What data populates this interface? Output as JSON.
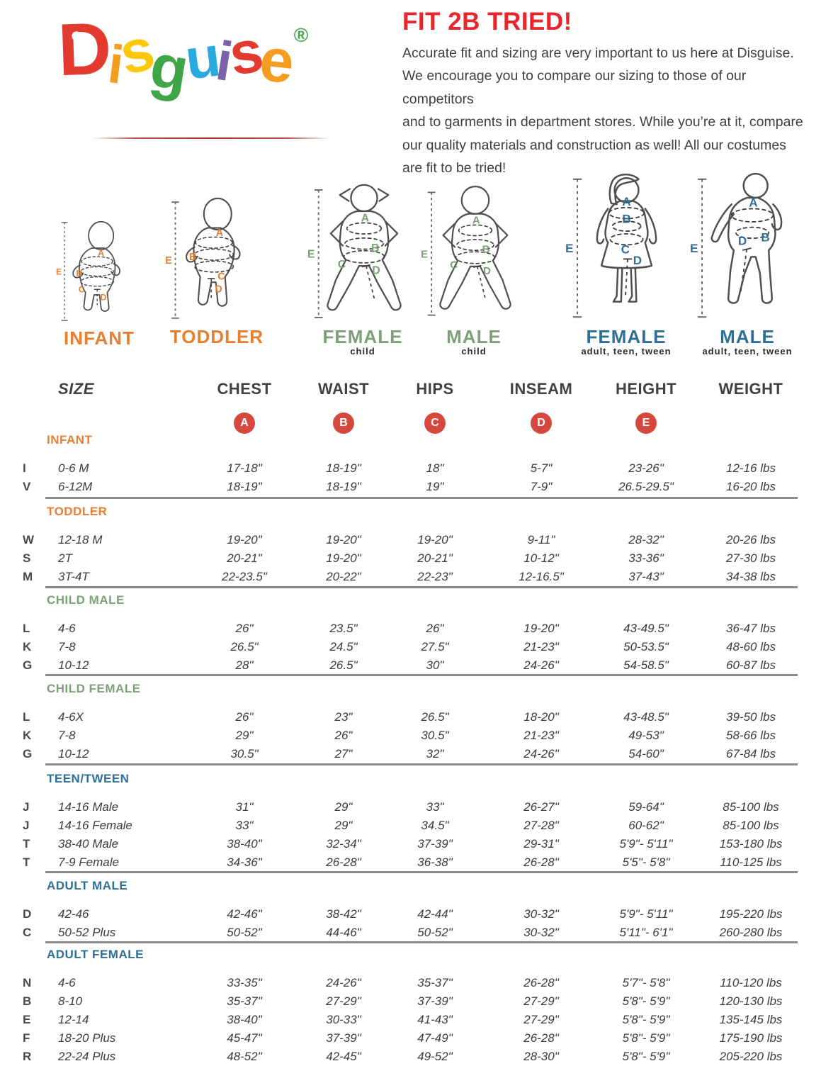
{
  "logo": {
    "letters": [
      {
        "ch": "D",
        "color": "#e23a2e"
      },
      {
        "ch": "i",
        "color": "#f59d20"
      },
      {
        "ch": "s",
        "color": "#fdc70c"
      },
      {
        "ch": "g",
        "color": "#3fa648"
      },
      {
        "ch": "u",
        "color": "#2ba9e1"
      },
      {
        "ch": "i",
        "color": "#7c63a9"
      },
      {
        "ch": "s",
        "color": "#e23a2e"
      },
      {
        "ch": "e",
        "color": "#f59d20"
      }
    ],
    "registered": "®",
    "registered_color": "#3fa648"
  },
  "header": {
    "title": "FIT 2B TRIED!",
    "title_color": "#e8262d",
    "lines": [
      "Accurate fit and sizing are very important to us here at Disguise.",
      "We encourage you to compare our sizing to those of our competitors",
      "and to garments in department stores. While you’re at it, compare",
      "our quality materials and construction as well! All our costumes",
      "are fit to be tried!"
    ]
  },
  "figures": [
    {
      "name": "INFANT",
      "sublabel": "",
      "color": "#e87e2e",
      "letters": [
        "A",
        "B",
        "C",
        "D",
        "E"
      ]
    },
    {
      "name": "TODDLER",
      "sublabel": "",
      "color": "#e87e2e",
      "letters": [
        "A",
        "B",
        "C",
        "D",
        "E"
      ]
    },
    {
      "name": "FEMALE",
      "sublabel": "child",
      "color": "#7da177",
      "letters": [
        "A",
        "B",
        "C",
        "D",
        "E"
      ]
    },
    {
      "name": "MALE",
      "sublabel": "child",
      "color": "#7da177",
      "letters": [
        "A",
        "B",
        "C",
        "D",
        "E"
      ]
    },
    {
      "name": "FEMALE",
      "sublabel": "adult, teen, tween",
      "color": "#2e6f96",
      "letters": [
        "A",
        "B",
        "C",
        "D",
        "E"
      ]
    },
    {
      "name": "MALE",
      "sublabel": "adult, teen, tween",
      "color": "#2e6f96",
      "letters": [
        "A",
        "B",
        "D",
        "E"
      ]
    }
  ],
  "table": {
    "headers": [
      "SIZE",
      "CHEST",
      "WAIST",
      "HIPS",
      "INSEAM",
      "HEIGHT",
      "WEIGHT"
    ],
    "badges": [
      "A",
      "B",
      "C",
      "D",
      "E"
    ],
    "badge_color": "#d5483d",
    "divider_color": "#8a8a8a",
    "sections": [
      {
        "title": "INFANT",
        "color": "#e87e2e",
        "rows": [
          {
            "letter": "I",
            "size": "0-6 M",
            "chest": "17-18\"",
            "waist": "18-19\"",
            "hips": "18\"",
            "inseam": "5-7\"",
            "height": "23-26\"",
            "weight": "12-16 lbs"
          },
          {
            "letter": "V",
            "size": "6-12M",
            "chest": "18-19\"",
            "waist": "18-19\"",
            "hips": "19\"",
            "inseam": "7-9\"",
            "height": "26.5-29.5\"",
            "weight": "16-20 lbs"
          }
        ]
      },
      {
        "title": "TODDLER",
        "color": "#e87e2e",
        "rows": [
          {
            "letter": "W",
            "size": "12-18 M",
            "chest": "19-20\"",
            "waist": "19-20\"",
            "hips": "19-20\"",
            "inseam": "9-11\"",
            "height": "28-32\"",
            "weight": "20-26 lbs"
          },
          {
            "letter": "S",
            "size": "2T",
            "chest": "20-21\"",
            "waist": "19-20\"",
            "hips": "20-21\"",
            "inseam": "10-12\"",
            "height": "33-36\"",
            "weight": "27-30 lbs"
          },
          {
            "letter": "M",
            "size": "3T-4T",
            "chest": "22-23.5\"",
            "waist": "20-22\"",
            "hips": "22-23\"",
            "inseam": "12-16.5\"",
            "height": "37-43\"",
            "weight": "34-38 lbs"
          }
        ]
      },
      {
        "title": "CHILD MALE",
        "color": "#7da177",
        "rows": [
          {
            "letter": "L",
            "size": "4-6",
            "chest": "26\"",
            "waist": "23.5\"",
            "hips": "26\"",
            "inseam": "19-20\"",
            "height": "43-49.5\"",
            "weight": "36-47 lbs"
          },
          {
            "letter": "K",
            "size": "7-8",
            "chest": "26.5\"",
            "waist": "24.5\"",
            "hips": "27.5\"",
            "inseam": "21-23\"",
            "height": "50-53.5\"",
            "weight": "48-60 lbs"
          },
          {
            "letter": "G",
            "size": "10-12",
            "chest": "28\"",
            "waist": "26.5\"",
            "hips": "30\"",
            "inseam": "24-26\"",
            "height": "54-58.5\"",
            "weight": "60-87 lbs"
          }
        ]
      },
      {
        "title": "CHILD FEMALE",
        "color": "#7da177",
        "rows": [
          {
            "letter": "L",
            "size": "4-6X",
            "chest": "26\"",
            "waist": "23\"",
            "hips": "26.5\"",
            "inseam": "18-20\"",
            "height": "43-48.5\"",
            "weight": "39-50 lbs"
          },
          {
            "letter": "K",
            "size": "7-8",
            "chest": "29\"",
            "waist": "26\"",
            "hips": "30.5\"",
            "inseam": "21-23\"",
            "height": "49-53\"",
            "weight": "58-66 lbs"
          },
          {
            "letter": "G",
            "size": "10-12",
            "chest": "30.5\"",
            "waist": "27\"",
            "hips": "32\"",
            "inseam": "24-26\"",
            "height": "54-60\"",
            "weight": "67-84 lbs"
          }
        ]
      },
      {
        "title": "TEEN/TWEEN",
        "color": "#2e6f96",
        "rows": [
          {
            "letter": "J",
            "size": "14-16 Male",
            "chest": "31\"",
            "waist": "29\"",
            "hips": "33\"",
            "inseam": "26-27\"",
            "height": "59-64\"",
            "weight": "85-100 lbs"
          },
          {
            "letter": "J",
            "size": "14-16 Female",
            "chest": "33\"",
            "waist": "29\"",
            "hips": "34.5\"",
            "inseam": "27-28\"",
            "height": "60-62\"",
            "weight": "85-100 lbs"
          },
          {
            "letter": "T",
            "size": "38-40 Male",
            "chest": "38-40\"",
            "waist": "32-34\"",
            "hips": "37-39\"",
            "inseam": "29-31\"",
            "height": "5'9\"- 5'11\"",
            "weight": "153-180 lbs"
          },
          {
            "letter": "T",
            "size": "7-9 Female",
            "chest": "34-36\"",
            "waist": "26-28\"",
            "hips": "36-38\"",
            "inseam": "26-28\"",
            "height": "5'5\"- 5'8\"",
            "weight": "110-125 lbs"
          }
        ]
      },
      {
        "title": "ADULT MALE",
        "color": "#2e6f96",
        "rows": [
          {
            "letter": "D",
            "size": "42-46",
            "chest": "42-46\"",
            "waist": "38-42\"",
            "hips": "42-44\"",
            "inseam": "30-32\"",
            "height": "5'9\"- 5'11\"",
            "weight": "195-220 lbs"
          },
          {
            "letter": "C",
            "size": "50-52 Plus",
            "chest": "50-52\"",
            "waist": "44-46\"",
            "hips": "50-52\"",
            "inseam": "30-32\"",
            "height": "5'11\"- 6'1\"",
            "weight": "260-280 lbs"
          }
        ]
      },
      {
        "title": "ADULT FEMALE",
        "color": "#2e6f96",
        "rows": [
          {
            "letter": "N",
            "size": "4-6",
            "chest": "33-35\"",
            "waist": "24-26\"",
            "hips": "35-37\"",
            "inseam": "26-28\"",
            "height": "5'7\"- 5'8\"",
            "weight": "110-120 lbs"
          },
          {
            "letter": "B",
            "size": "8-10",
            "chest": "35-37\"",
            "waist": "27-29\"",
            "hips": "37-39\"",
            "inseam": "27-29\"",
            "height": "5'8\"- 5'9\"",
            "weight": "120-130 lbs"
          },
          {
            "letter": "E",
            "size": "12-14",
            "chest": "38-40\"",
            "waist": "30-33\"",
            "hips": "41-43\"",
            "inseam": "27-29\"",
            "height": "5'8\"- 5'9\"",
            "weight": "135-145 lbs"
          },
          {
            "letter": "F",
            "size": "18-20 Plus",
            "chest": "45-47\"",
            "waist": "37-39\"",
            "hips": "47-49\"",
            "inseam": "26-28\"",
            "height": "5'8\"- 5'9\"",
            "weight": "175-190 lbs"
          },
          {
            "letter": "R",
            "size": "22-24 Plus",
            "chest": "48-52\"",
            "waist": "42-45\"",
            "hips": "49-52\"",
            "inseam": "28-30\"",
            "height": "5'8\"- 5'9\"",
            "weight": "205-220 lbs"
          }
        ]
      }
    ]
  }
}
